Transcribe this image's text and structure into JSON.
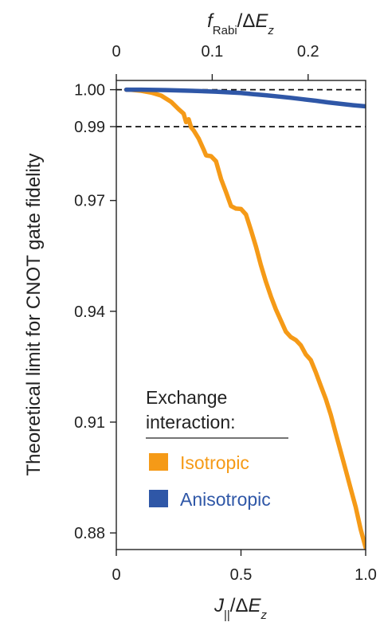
{
  "chart_data": {
    "type": "line",
    "xlabel": "J||/ΔEz",
    "xlabel_parts": {
      "var": "J",
      "sub": "||",
      "mid": "/Δ",
      "var2": "E",
      "sub2": "z"
    },
    "top_xlabel": "fRabi/ΔEz",
    "top_xlabel_parts": {
      "var": "f",
      "sub": "Rabi",
      "mid": "/Δ",
      "var2": "E",
      "sub2": "z"
    },
    "ylabel": "Theoretical limit for CNOT gate fidelity",
    "xlim": [
      0,
      1.0
    ],
    "ylim": [
      0.8755,
      1.0025
    ],
    "top_xlim": [
      0,
      0.26
    ],
    "x_ticks": [
      0,
      0.5,
      1.0
    ],
    "x_tick_labels": [
      "0",
      "0.5",
      "1.0"
    ],
    "top_x_ticks": [
      0,
      0.1,
      0.2
    ],
    "top_x_tick_labels": [
      "0",
      "0.1",
      "0.2"
    ],
    "y_ticks": [
      1.0,
      0.99,
      0.97,
      0.94,
      0.91,
      0.88
    ],
    "y_tick_labels": [
      "1.00",
      "0.99",
      "0.97",
      "0.94",
      "0.91",
      "0.88"
    ],
    "reference_lines": [
      1.0,
      0.99
    ],
    "legend": {
      "title_line1": "Exchange",
      "title_line2": "interaction:",
      "placement": "bottom-left"
    },
    "series": [
      {
        "name": "Isotropic",
        "color": "#f59a17",
        "x": [
          0.04,
          0.06,
          0.1,
          0.14,
          0.18,
          0.22,
          0.25,
          0.27,
          0.28,
          0.29,
          0.3,
          0.31,
          0.33,
          0.35,
          0.36,
          0.38,
          0.4,
          0.42,
          0.44,
          0.46,
          0.48,
          0.5,
          0.52,
          0.54,
          0.56,
          0.58,
          0.6,
          0.62,
          0.64,
          0.66,
          0.68,
          0.7,
          0.72,
          0.74,
          0.76,
          0.78,
          0.8,
          0.82,
          0.84,
          0.86,
          0.88,
          0.9,
          0.92,
          0.94,
          0.96,
          0.98,
          1.0
        ],
        "values": [
          1.0,
          0.99995,
          0.9997,
          0.9992,
          0.9984,
          0.9967,
          0.9947,
          0.9935,
          0.9912,
          0.992,
          0.9898,
          0.989,
          0.9868,
          0.9838,
          0.9822,
          0.982,
          0.9806,
          0.9758,
          0.9723,
          0.9685,
          0.9678,
          0.9677,
          0.9662,
          0.962,
          0.9575,
          0.9525,
          0.948,
          0.944,
          0.9405,
          0.9375,
          0.9345,
          0.933,
          0.9322,
          0.9308,
          0.9283,
          0.9268,
          0.9235,
          0.9198,
          0.9163,
          0.912,
          0.907,
          0.902,
          0.897,
          0.892,
          0.887,
          0.881,
          0.876
        ]
      },
      {
        "name": "Anisotropic",
        "color": "#2f57a7",
        "x": [
          0.04,
          0.1,
          0.2,
          0.3,
          0.4,
          0.5,
          0.55,
          0.6,
          0.65,
          0.7,
          0.75,
          0.8,
          0.85,
          0.9,
          0.95,
          1.0
        ],
        "values": [
          1.0,
          1.0,
          0.9999,
          0.9997,
          0.99945,
          0.9991,
          0.9988,
          0.9985,
          0.99815,
          0.9978,
          0.9974,
          0.997,
          0.99655,
          0.99615,
          0.9958,
          0.9955
        ]
      }
    ]
  }
}
